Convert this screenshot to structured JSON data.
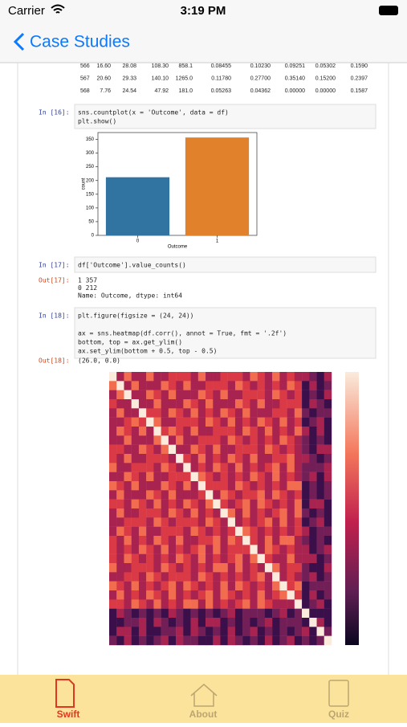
{
  "status_bar": {
    "carrier": "Carrier",
    "time": "3:19 PM"
  },
  "nav": {
    "back": "Case Studies"
  },
  "table": {
    "rows": [
      [
        "566",
        "16.60",
        "28.08",
        "108.30",
        "858.1",
        "0.08455",
        "0.10230",
        "0.09251",
        "0.05302",
        "0.1590"
      ],
      [
        "567",
        "20.60",
        "29.33",
        "140.10",
        "1265.0",
        "0.11780",
        "0.27700",
        "0.35140",
        "0.15200",
        "0.2397"
      ],
      [
        "568",
        "7.76",
        "24.54",
        "47.92",
        "181.0",
        "0.05263",
        "0.04362",
        "0.00000",
        "0.00000",
        "0.1587"
      ]
    ]
  },
  "cells": [
    {
      "prompt": "In [16]:",
      "code": [
        "sns.countplot(x = 'Outcome', data = df)",
        "plt.show()"
      ]
    },
    {
      "prompt": "In [17]:",
      "code": [
        "df['Outcome'].value_counts()"
      ],
      "out_prompt": "Out[17]:",
      "output": [
        "1    357",
        "0    212",
        "Name: Outcome, dtype: int64"
      ]
    },
    {
      "prompt": "In [18]:",
      "code": [
        "plt.figure(figsize = (24, 24))",
        "",
        "ax = sns.heatmap(df.corr(), annot = True, fmt = '.2f')",
        "bottom, top = ax.get_ylim()",
        "ax.set_ylim(bottom + 0.5, top - 0.5)"
      ],
      "out_prompt": "Out[18]:",
      "output": [
        "(26.0, 0.0)"
      ]
    }
  ],
  "countplot": {
    "type": "bar",
    "categories": [
      "0",
      "1"
    ],
    "values": [
      212,
      357
    ],
    "colors": [
      "#3274a1",
      "#e1812c"
    ],
    "xlabel": "Outcome",
    "ylabel": "count",
    "ylim": [
      0,
      375
    ],
    "yticks": [
      0,
      50,
      100,
      150,
      200,
      250,
      300,
      350
    ]
  },
  "tabs": [
    "Swift",
    "About",
    "Quiz"
  ]
}
